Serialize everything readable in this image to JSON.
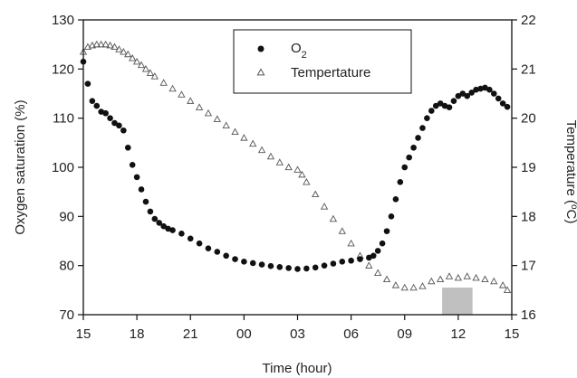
{
  "chart_data": {
    "type": "scatter",
    "xlabel": "Time (hour)",
    "ylabel_left": "Oxygen saturation (%)",
    "ylabel_right_prefix": "Temperature (",
    "ylabel_right_sup": "o",
    "ylabel_right_suffix": "C)",
    "x_ticks": [
      "15",
      "18",
      "21",
      "00",
      "03",
      "06",
      "09",
      "12",
      "15"
    ],
    "x_range_hours": [
      0,
      24
    ],
    "y_left_range": [
      70,
      130
    ],
    "y_left_ticks": [
      "70",
      "80",
      "90",
      "100",
      "110",
      "120",
      "130"
    ],
    "y_right_range": [
      16,
      22
    ],
    "y_right_ticks": [
      "16",
      "17",
      "18",
      "19",
      "20",
      "21",
      "22"
    ],
    "legend": {
      "placement": "top-center",
      "o2_label_main": "O",
      "o2_label_sub": "2",
      "temp_label": "Tempertature"
    },
    "grid": false,
    "shaded_period_hours": [
      20.1,
      21.8
    ],
    "shaded_color": "#c0c0c0",
    "series": [
      {
        "name": "O2",
        "axis": "left",
        "marker": "filled-circle",
        "color": "#111111",
        "points": [
          [
            0,
            121.5
          ],
          [
            0.25,
            117
          ],
          [
            0.5,
            113.5
          ],
          [
            0.75,
            112.5
          ],
          [
            1,
            111.3
          ],
          [
            1.25,
            111
          ],
          [
            1.5,
            110
          ],
          [
            1.75,
            109
          ],
          [
            2,
            108.5
          ],
          [
            2.25,
            107.5
          ],
          [
            2.5,
            104
          ],
          [
            2.75,
            100.5
          ],
          [
            3,
            98
          ],
          [
            3.25,
            95.5
          ],
          [
            3.5,
            93
          ],
          [
            3.75,
            91
          ],
          [
            4,
            89.5
          ],
          [
            4.25,
            88.7
          ],
          [
            4.5,
            88
          ],
          [
            4.75,
            87.5
          ],
          [
            5,
            87.2
          ],
          [
            5.5,
            86.5
          ],
          [
            6,
            85.5
          ],
          [
            6.5,
            84.5
          ],
          [
            7,
            83.5
          ],
          [
            7.5,
            82.8
          ],
          [
            8,
            82
          ],
          [
            8.5,
            81.3
          ],
          [
            9,
            80.8
          ],
          [
            9.5,
            80.5
          ],
          [
            10,
            80.2
          ],
          [
            10.5,
            79.9
          ],
          [
            11,
            79.7
          ],
          [
            11.5,
            79.5
          ],
          [
            12,
            79.3
          ],
          [
            12.5,
            79.4
          ],
          [
            13,
            79.6
          ],
          [
            13.5,
            80
          ],
          [
            14,
            80.4
          ],
          [
            14.5,
            80.8
          ],
          [
            15,
            81
          ],
          [
            15.5,
            81.3
          ],
          [
            16,
            81.6
          ],
          [
            16.25,
            82
          ],
          [
            16.5,
            83
          ],
          [
            16.75,
            84.5
          ],
          [
            17,
            87
          ],
          [
            17.25,
            90
          ],
          [
            17.5,
            93.5
          ],
          [
            17.75,
            97
          ],
          [
            18,
            100
          ],
          [
            18.25,
            102
          ],
          [
            18.5,
            104
          ],
          [
            18.75,
            106
          ],
          [
            19,
            108
          ],
          [
            19.25,
            110
          ],
          [
            19.5,
            111.5
          ],
          [
            19.75,
            112.5
          ],
          [
            20,
            113
          ],
          [
            20.25,
            112.5
          ],
          [
            20.5,
            112.2
          ],
          [
            20.75,
            113.5
          ],
          [
            21,
            114.5
          ],
          [
            21.25,
            115
          ],
          [
            21.5,
            114.5
          ],
          [
            21.75,
            115.2
          ],
          [
            22,
            115.8
          ],
          [
            22.25,
            116
          ],
          [
            22.5,
            116.2
          ],
          [
            22.75,
            115.8
          ],
          [
            23,
            115
          ],
          [
            23.25,
            114
          ],
          [
            23.5,
            113
          ],
          [
            23.75,
            112.3
          ]
        ]
      },
      {
        "name": "Tempertature",
        "axis": "right",
        "marker": "open-triangle",
        "color": "#555555",
        "points": [
          [
            0,
            21.35
          ],
          [
            0.25,
            21.45
          ],
          [
            0.5,
            21.48
          ],
          [
            0.75,
            21.5
          ],
          [
            1,
            21.5
          ],
          [
            1.25,
            21.5
          ],
          [
            1.5,
            21.48
          ],
          [
            1.75,
            21.45
          ],
          [
            2,
            21.4
          ],
          [
            2.25,
            21.35
          ],
          [
            2.5,
            21.3
          ],
          [
            2.75,
            21.22
          ],
          [
            3,
            21.15
          ],
          [
            3.25,
            21.08
          ],
          [
            3.5,
            21
          ],
          [
            3.75,
            20.92
          ],
          [
            4,
            20.85
          ],
          [
            4.5,
            20.72
          ],
          [
            5,
            20.6
          ],
          [
            5.5,
            20.48
          ],
          [
            6,
            20.35
          ],
          [
            6.5,
            20.22
          ],
          [
            7,
            20.1
          ],
          [
            7.5,
            19.98
          ],
          [
            8,
            19.85
          ],
          [
            8.5,
            19.72
          ],
          [
            9,
            19.6
          ],
          [
            9.5,
            19.48
          ],
          [
            10,
            19.35
          ],
          [
            10.5,
            19.22
          ],
          [
            11,
            19.1
          ],
          [
            11.5,
            19
          ],
          [
            12,
            18.95
          ],
          [
            12.25,
            18.85
          ],
          [
            12.5,
            18.7
          ],
          [
            13,
            18.45
          ],
          [
            13.5,
            18.2
          ],
          [
            14,
            17.95
          ],
          [
            14.5,
            17.7
          ],
          [
            15,
            17.45
          ],
          [
            15.5,
            17.2
          ],
          [
            16,
            17
          ],
          [
            16.5,
            16.85
          ],
          [
            17,
            16.72
          ],
          [
            17.5,
            16.6
          ],
          [
            18,
            16.55
          ],
          [
            18.5,
            16.55
          ],
          [
            19,
            16.58
          ],
          [
            19.5,
            16.68
          ],
          [
            20,
            16.72
          ],
          [
            20.5,
            16.78
          ],
          [
            21,
            16.75
          ],
          [
            21.5,
            16.78
          ],
          [
            22,
            16.75
          ],
          [
            22.5,
            16.72
          ],
          [
            23,
            16.68
          ],
          [
            23.5,
            16.6
          ],
          [
            23.75,
            16.5
          ]
        ]
      }
    ]
  }
}
